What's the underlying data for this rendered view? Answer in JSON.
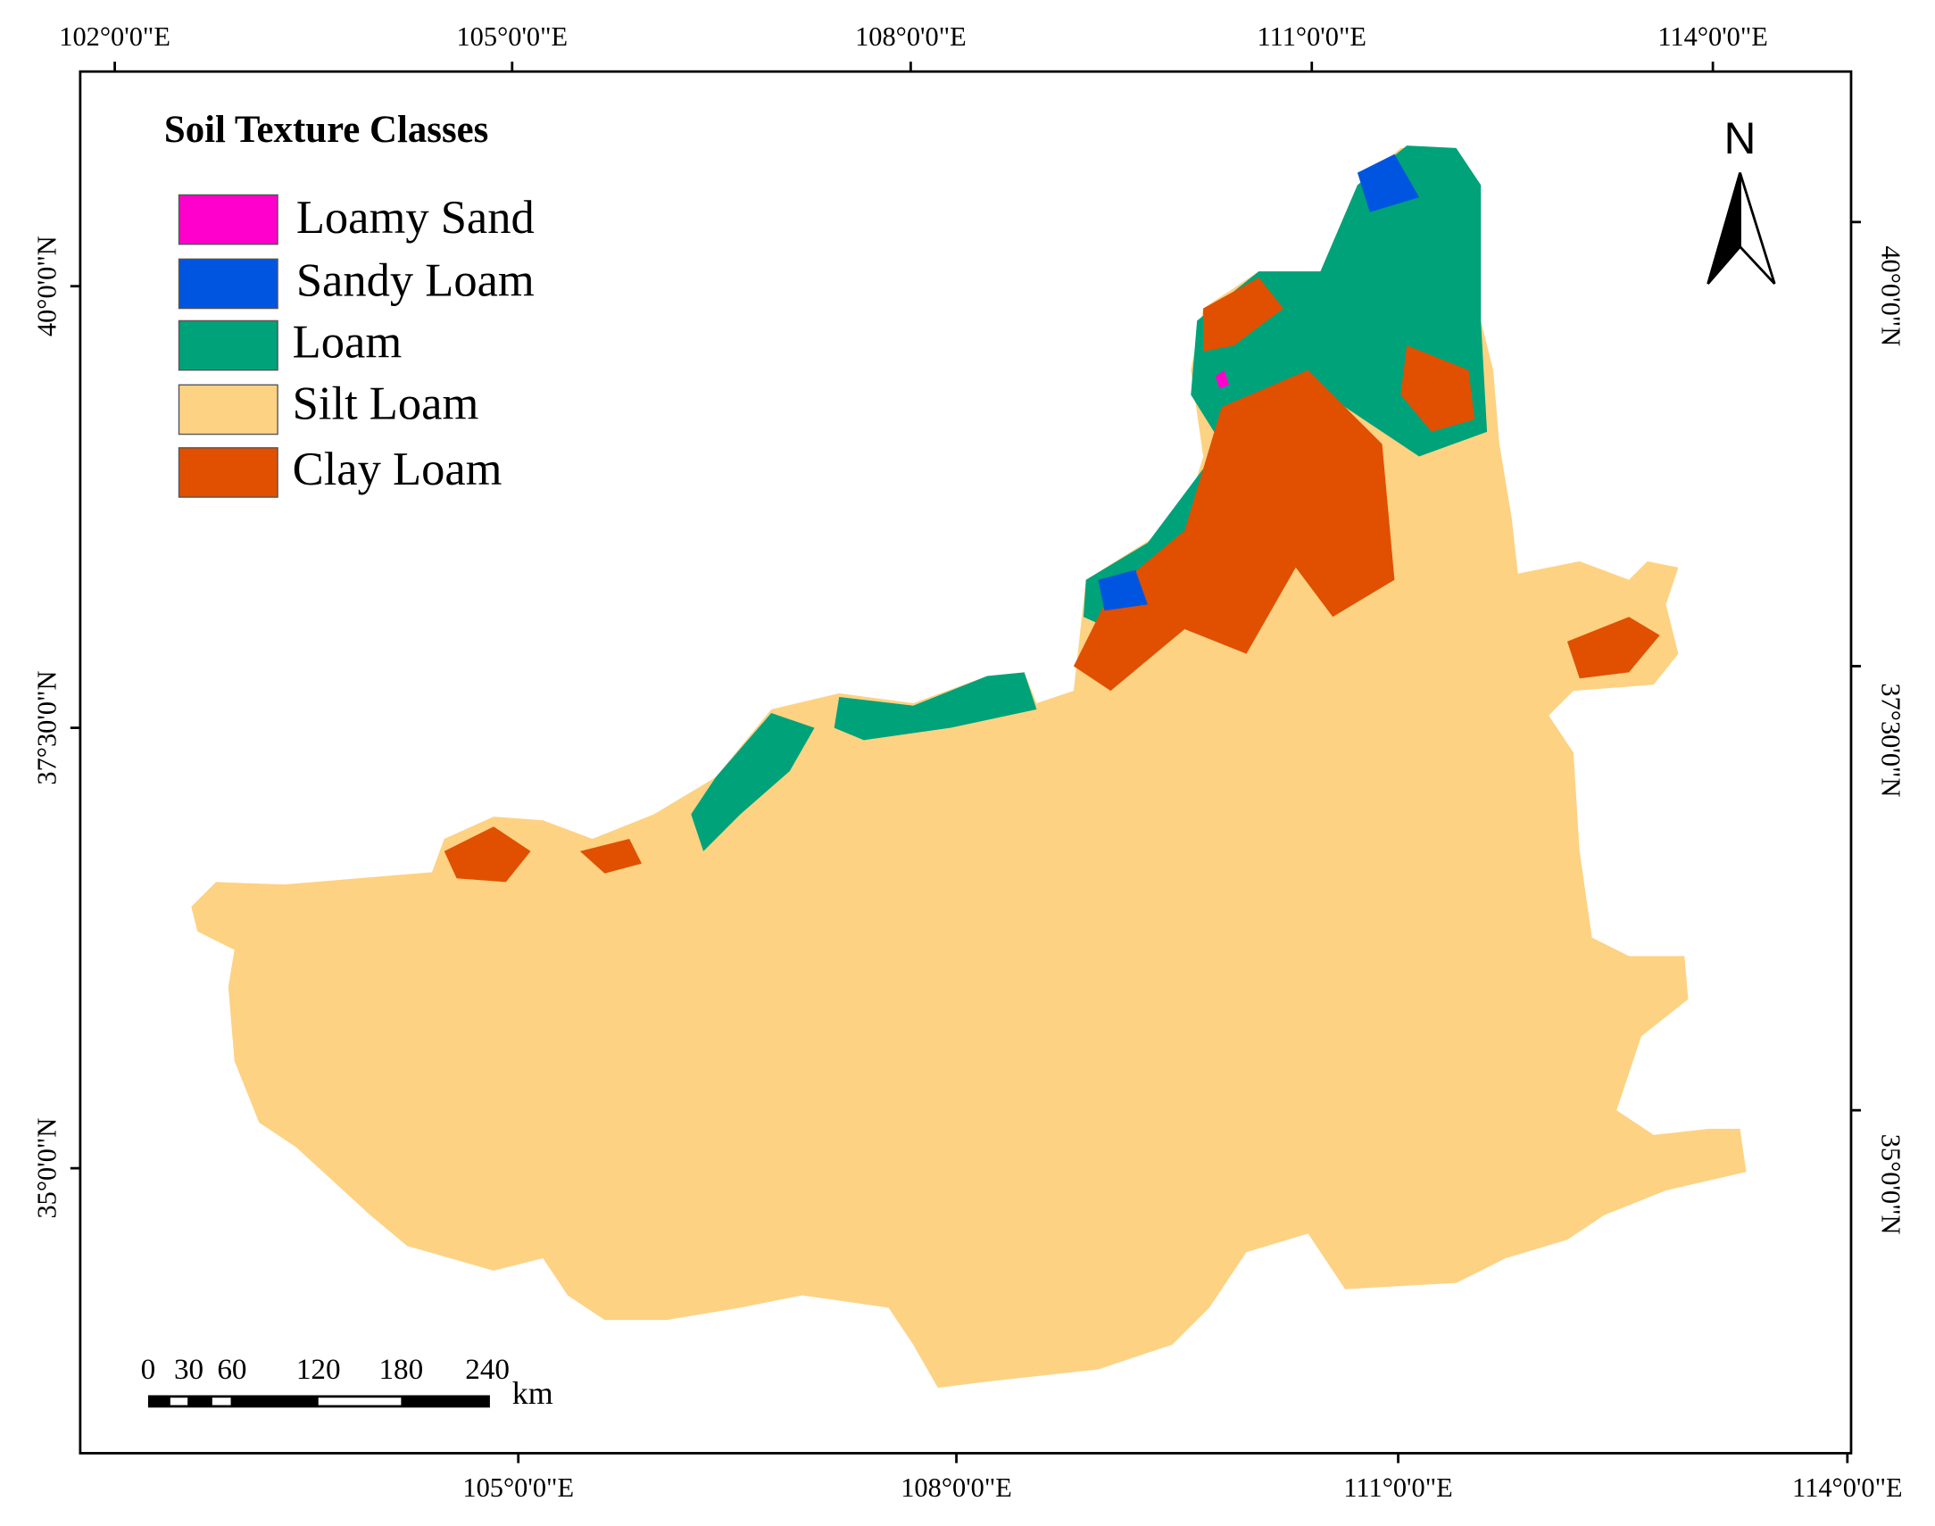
{
  "map": {
    "legend": {
      "title": "Soil Texture Classes",
      "items": [
        {
          "label": "Loamy Sand",
          "color": "#ff00cc"
        },
        {
          "label": "Sandy Loam",
          "color": "#0055e0"
        },
        {
          "label": "Loam",
          "color": "#00a27a"
        },
        {
          "label": "Silt Loam",
          "color": "#fdd283"
        },
        {
          "label": "Clay Loam",
          "color": "#e05000"
        }
      ]
    },
    "north": "N",
    "axes": {
      "top": [
        "102°0'0\"E",
        "105°0'0\"E",
        "108°0'0\"E",
        "111°0'0\"E",
        "114°0'0\"E"
      ],
      "bottom": [
        "105°0'0\"E",
        "108°0'0\"E",
        "111°0'0\"E",
        "114°0'0\"E"
      ],
      "left": [
        "40°0'0\"N",
        "37°30'0\"N",
        "35°0'0\"N"
      ],
      "right": [
        "40°0'0\"N",
        "37°30'0\"N",
        "35°0'0\"N"
      ]
    },
    "scale_bar": {
      "labels": [
        0,
        30,
        60,
        120,
        180,
        240
      ],
      "unit": "km"
    }
  }
}
